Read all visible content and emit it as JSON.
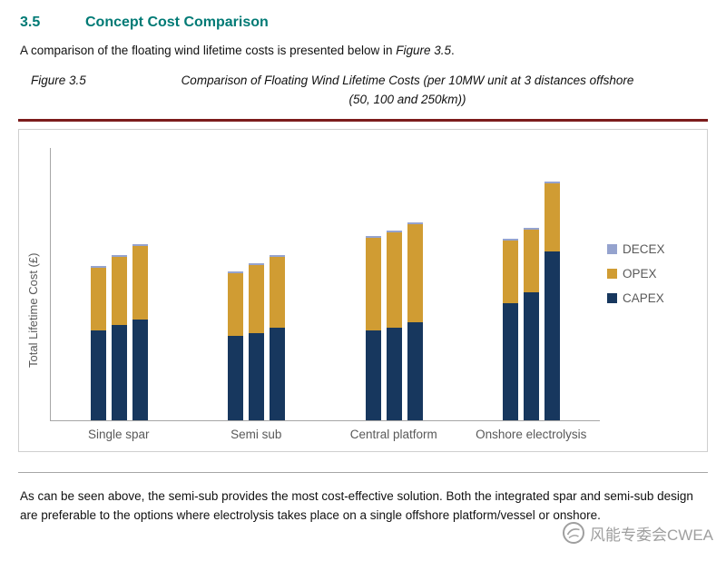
{
  "heading": {
    "number": "3.5",
    "title": "Concept Cost Comparison"
  },
  "intro": {
    "text_before": "A comparison of the floating wind lifetime costs is presented below in ",
    "figure_ref": "Figure 3.5",
    "text_after": "."
  },
  "figure_caption": {
    "label": "Figure 3.5",
    "line1": "Comparison of Floating Wind Lifetime Costs (per 10MW unit at 3 distances offshore",
    "line2": "(50, 100 and 250km))"
  },
  "chart_data": {
    "type": "bar",
    "stacked": true,
    "title": "",
    "xlabel": "",
    "ylabel": "Total Lifetime Cost (£)",
    "categories": [
      "Single spar",
      "Semi sub",
      "Central platform",
      "Onshore electrolysis"
    ],
    "distances_km": [
      50,
      100,
      250
    ],
    "series": [
      {
        "name": "CAPEX",
        "color": "#17375E",
        "values": [
          [
            33,
            35,
            37
          ],
          [
            31,
            32,
            34
          ],
          [
            33,
            34,
            36
          ],
          [
            43,
            47,
            62
          ]
        ]
      },
      {
        "name": "OPEX",
        "color": "#D09C33",
        "values": [
          [
            23,
            25,
            27
          ],
          [
            23,
            25,
            26
          ],
          [
            34,
            35,
            36
          ],
          [
            23,
            23,
            25
          ]
        ]
      },
      {
        "name": "DECEX",
        "color": "#95A3CE",
        "values": [
          [
            0.5,
            0.5,
            0.5
          ],
          [
            0.5,
            0.5,
            0.5
          ],
          [
            0.5,
            0.5,
            0.5
          ],
          [
            0.5,
            0.5,
            0.5
          ]
        ]
      }
    ],
    "ylim": [
      0,
      100
    ],
    "axis_numeric_labels": false,
    "grid": false,
    "legend_position": "right",
    "legend_order": [
      "DECEX",
      "OPEX",
      "CAPEX"
    ]
  },
  "body_text": "As can be seen above, the semi-sub provides the most cost-effective solution. Both the integrated spar and semi-sub design are preferable to the options where electrolysis takes place on a single offshore platform/vessel or onshore.",
  "watermark": {
    "text": "风能专委会CWEA"
  },
  "colors": {
    "heading_teal": "#007A75",
    "figure_rule_maroon": "#7C1C1C",
    "axis_text_gray": "#595959"
  }
}
